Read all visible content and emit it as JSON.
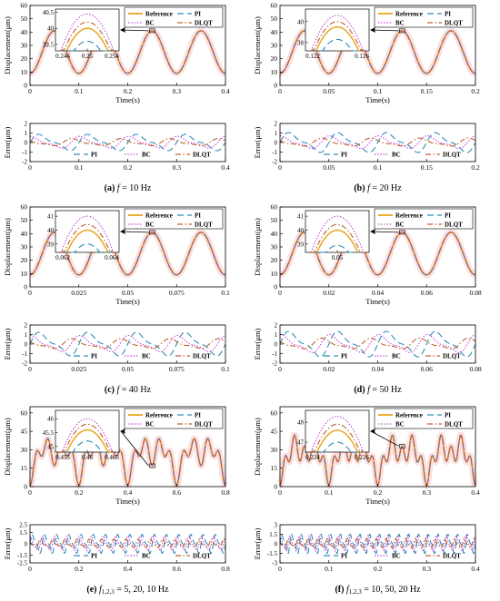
{
  "colors": {
    "reference": "#E8A820",
    "pi": "#2E8DB8",
    "bc": "#C040D8",
    "dlqt": "#C06030",
    "band": "#F4C8C8",
    "axis": "#000000"
  },
  "legend_labels": {
    "reference": "Reference",
    "pi": "PI",
    "bc": "BC",
    "dlqt": "DLQT"
  },
  "series_styles": {
    "reference": "solid",
    "pi": "long-dash",
    "bc": "dotted",
    "dlqt": "dash-dot"
  },
  "legend_order_top": [
    "reference",
    "pi",
    "bc",
    "dlqt"
  ],
  "legend_order_bottom": [
    "pi",
    "bc",
    "dlqt"
  ],
  "chart_data": [
    {
      "id": "a",
      "type": "line",
      "caption_prefix": "(a) ",
      "caption_var": "f",
      "caption_sub": "",
      "caption_rest": " = 10 Hz",
      "top": {
        "ylabel": "Displacement(μm)",
        "xlabel": "Time(s)",
        "xlim": [
          0,
          0.4
        ],
        "ylim": [
          0,
          60
        ],
        "xticks": [
          0,
          0.1,
          0.2,
          0.3,
          0.4
        ],
        "xtick_labels": [
          "0",
          "0.1",
          "0.2",
          "0.3",
          "0.4"
        ],
        "yticks": [
          0,
          10,
          20,
          30,
          40,
          50,
          60
        ],
        "ytick_labels": [
          "0",
          "10",
          "20",
          "30",
          "40",
          "50",
          "60"
        ],
        "signal": {
          "offset": 25,
          "components": [
            {
              "amp": 16,
              "freq": 10
            }
          ]
        },
        "inset": {
          "yticks": [
            39.5,
            40,
            40.5
          ],
          "ytick_labels": [
            "39.5",
            "40",
            "40.5"
          ],
          "xtick_labels": [
            "0.246",
            "0.25",
            "0.254"
          ],
          "ylim": [
            39.3,
            40.6
          ],
          "peak_values": {
            "reference": 40.0,
            "pi": 39.6,
            "bc": 40.45,
            "dlqt": 40.2
          }
        }
      },
      "bottom": {
        "ylabel": "Error(μm)",
        "xlim": [
          0,
          0.4
        ],
        "ylim": [
          -2,
          2
        ],
        "xticks": [
          0,
          0.1,
          0.2,
          0.3,
          0.4
        ],
        "xtick_labels": [
          "0",
          "0.1",
          "0.2",
          "0.3",
          "0.4"
        ],
        "yticks": [
          -2,
          -1,
          0,
          1,
          2
        ],
        "ytick_labels": [
          "-2",
          "-1",
          "0",
          "1",
          "2"
        ],
        "amplitudes": {
          "pi": 0.9,
          "bc": 0.65,
          "dlqt": 0.4
        },
        "error_freq": 10
      }
    },
    {
      "id": "b",
      "type": "line",
      "caption_prefix": "(b) ",
      "caption_var": "f",
      "caption_sub": "",
      "caption_rest": " = 20 Hz",
      "top": {
        "ylabel": "Displacement(μm)",
        "xlabel": "Time(s)",
        "xlim": [
          0,
          0.2
        ],
        "ylim": [
          0,
          60
        ],
        "xticks": [
          0,
          0.05,
          0.1,
          0.15,
          0.2
        ],
        "xtick_labels": [
          "0",
          "0.05",
          "0.1",
          "0.15",
          "0.2"
        ],
        "yticks": [
          0,
          10,
          20,
          30,
          40,
          50,
          60
        ],
        "ytick_labels": [
          "0",
          "10",
          "20",
          "30",
          "40",
          "50",
          "60"
        ],
        "signal": {
          "offset": 25,
          "components": [
            {
              "amp": 16,
              "freq": 20
            }
          ]
        },
        "inset": {
          "yticks": [
            38,
            40
          ],
          "ytick_labels": [
            "38",
            "40"
          ],
          "xtick_labels": [
            "0.122",
            "0.126"
          ],
          "ylim": [
            37.2,
            41.2
          ],
          "peak_values": {
            "reference": 39.5,
            "pi": 38.3,
            "bc": 40.6,
            "dlqt": 40.0
          }
        }
      },
      "bottom": {
        "ylabel": "Error(μm)",
        "xlim": [
          0,
          0.2
        ],
        "ylim": [
          -2,
          2
        ],
        "xticks": [
          0,
          0.05,
          0.1,
          0.15,
          0.2
        ],
        "xtick_labels": [
          "0",
          "0.05",
          "0.1",
          "0.15",
          "0.2"
        ],
        "yticks": [
          -2,
          -1,
          0,
          1,
          2
        ],
        "ytick_labels": [
          "-2",
          "-1",
          "0",
          "1",
          "2"
        ],
        "amplitudes": {
          "pi": 1.1,
          "bc": 0.7,
          "dlqt": 0.45
        },
        "error_freq": 20
      }
    },
    {
      "id": "c",
      "type": "line",
      "caption_prefix": "(c) ",
      "caption_var": "f",
      "caption_sub": "",
      "caption_rest": " = 40 Hz",
      "top": {
        "ylabel": "Displacement(μm)",
        "xlabel": "Time(s)",
        "xlim": [
          0,
          0.1
        ],
        "ylim": [
          0,
          60
        ],
        "xticks": [
          0,
          0.025,
          0.05,
          0.075,
          0.1
        ],
        "xtick_labels": [
          "0",
          "0.025",
          "0.05",
          "0.075",
          "0.1"
        ],
        "yticks": [
          0,
          10,
          20,
          30,
          40,
          50,
          60
        ],
        "ytick_labels": [
          "0",
          "10",
          "20",
          "30",
          "40",
          "50",
          "60"
        ],
        "signal": {
          "offset": 25,
          "components": [
            {
              "amp": 16,
              "freq": 40
            }
          ]
        },
        "inset": {
          "yticks": [
            39,
            40,
            41
          ],
          "ytick_labels": [
            "39",
            "40",
            "41"
          ],
          "xtick_labels": [
            "0.062",
            "0.064"
          ],
          "ylim": [
            38.4,
            41.4
          ],
          "peak_values": {
            "reference": 40.0,
            "pi": 39.0,
            "bc": 41.0,
            "dlqt": 40.4
          }
        }
      },
      "bottom": {
        "ylabel": "Error(μm)",
        "xlim": [
          0,
          0.1
        ],
        "ylim": [
          -2,
          2
        ],
        "xticks": [
          0,
          0.025,
          0.05,
          0.075,
          0.1
        ],
        "xtick_labels": [
          "0",
          "0.025",
          "0.05",
          "0.075",
          "0.1"
        ],
        "yticks": [
          -2,
          -1,
          0,
          1,
          2
        ],
        "ytick_labels": [
          "-2",
          "-1",
          "0",
          "1",
          "2"
        ],
        "amplitudes": {
          "pi": 1.3,
          "bc": 0.9,
          "dlqt": 0.55
        },
        "error_freq": 40
      }
    },
    {
      "id": "d",
      "type": "line",
      "caption_prefix": "(d) ",
      "caption_var": "f",
      "caption_sub": "",
      "caption_rest": " = 50 Hz",
      "top": {
        "ylabel": "Displacement(μm)",
        "xlabel": "Time(s)",
        "xlim": [
          0,
          0.08
        ],
        "ylim": [
          0,
          60
        ],
        "xticks": [
          0,
          0.02,
          0.04,
          0.06,
          0.08
        ],
        "xtick_labels": [
          "0",
          "0.02",
          "0.04",
          "0.06",
          "0.08"
        ],
        "yticks": [
          0,
          10,
          20,
          30,
          40,
          50,
          60
        ],
        "ytick_labels": [
          "0",
          "10",
          "20",
          "30",
          "40",
          "50",
          "60"
        ],
        "signal": {
          "offset": 25,
          "components": [
            {
              "amp": 16,
              "freq": 50
            }
          ]
        },
        "inset": {
          "yticks": [
            39,
            40,
            41
          ],
          "ytick_labels": [
            "39",
            "40",
            "41"
          ],
          "xtick_labels": [
            "0.05"
          ],
          "ylim": [
            38.4,
            41.4
          ],
          "peak_values": {
            "reference": 40.0,
            "pi": 38.9,
            "bc": 41.0,
            "dlqt": 40.4
          }
        }
      },
      "bottom": {
        "ylabel": "Error(μm)",
        "xlim": [
          0,
          0.08
        ],
        "ylim": [
          -2,
          2
        ],
        "xticks": [
          0,
          0.02,
          0.04,
          0.06,
          0.08
        ],
        "xtick_labels": [
          "0",
          "0.02",
          "0.04",
          "0.06",
          "0.08"
        ],
        "yticks": [
          -2,
          -1,
          0,
          1,
          2
        ],
        "ytick_labels": [
          "-2",
          "-1",
          "0",
          "1",
          "2"
        ],
        "amplitudes": {
          "pi": 1.4,
          "bc": 1.0,
          "dlqt": 0.6
        },
        "error_freq": 50
      }
    },
    {
      "id": "e",
      "type": "line",
      "caption_prefix": "(e) ",
      "caption_var": "f",
      "caption_sub": "1,2,3",
      "caption_rest": " = 5, 20, 10 Hz",
      "top": {
        "ylabel": "Displacement(μm)",
        "xlabel": "Time(s)",
        "xlim": [
          0,
          0.8
        ],
        "ylim": [
          0,
          65
        ],
        "xticks": [
          0,
          0.2,
          0.4,
          0.6,
          0.8
        ],
        "xtick_labels": [
          "0",
          "0.2",
          "0.4",
          "0.6",
          "0.8"
        ],
        "yticks": [
          0,
          15,
          30,
          45,
          60
        ],
        "ytick_labels": [
          "0",
          "15",
          "30",
          "45",
          "60"
        ],
        "signal": {
          "offset": 25,
          "components": [
            {
              "amp": 8,
              "freq": 5
            },
            {
              "amp": 8,
              "freq": 20
            },
            {
              "amp": 8,
              "freq": 10
            }
          ]
        },
        "inset": {
          "yticks": [
            45,
            45.5,
            46
          ],
          "ytick_labels": [
            "45",
            "45.5",
            "46"
          ],
          "xtick_labels": [
            "0.455",
            "0.46",
            "0.465"
          ],
          "ylim": [
            44.8,
            46.3
          ],
          "peak_values": {
            "reference": 45.6,
            "pi": 45.2,
            "bc": 46.0,
            "dlqt": 45.8
          }
        }
      },
      "bottom": {
        "ylabel": "Error(μm)",
        "xlim": [
          0,
          0.8
        ],
        "ylim": [
          -2.5,
          2.5
        ],
        "xticks": [
          0,
          0.2,
          0.4,
          0.6,
          0.8
        ],
        "xtick_labels": [
          "0",
          "0.2",
          "0.4",
          "0.6",
          "0.8"
        ],
        "yticks": [
          -1.5,
          0,
          1.5
        ],
        "ytick_labels": [
          "-1.5",
          "0",
          "1.5"
        ],
        "extra_yticks": [
          2.5,
          -2.5
        ],
        "extra_ytick_labels": [
          "2.5",
          "-2.5"
        ],
        "amplitudes": {
          "pi": 1.3,
          "bc": 1.0,
          "dlqt": 0.6
        },
        "error_freq": 20
      }
    },
    {
      "id": "f",
      "type": "line",
      "caption_prefix": "(f) ",
      "caption_var": "f",
      "caption_sub": "1,2,3",
      "caption_rest": " = 10, 50, 20 Hz",
      "top": {
        "ylabel": "Displacement(μm)",
        "xlabel": "Time(s)",
        "xlim": [
          0,
          0.4
        ],
        "ylim": [
          0,
          65
        ],
        "xticks": [
          0,
          0.1,
          0.2,
          0.3,
          0.4
        ],
        "xtick_labels": [
          "0",
          "0.1",
          "0.2",
          "0.3",
          "0.4"
        ],
        "yticks": [
          0,
          15,
          30,
          45,
          60
        ],
        "ytick_labels": [
          "0",
          "15",
          "30",
          "45",
          "60"
        ],
        "signal": {
          "offset": 25,
          "components": [
            {
              "amp": 8,
              "freq": 10
            },
            {
              "amp": 8,
              "freq": 50
            },
            {
              "amp": 8,
              "freq": 20
            }
          ]
        },
        "inset": {
          "yticks": [
            47,
            48
          ],
          "ytick_labels": [
            "47",
            "48"
          ],
          "xtick_labels": [
            "0.224",
            "0.226"
          ],
          "ylim": [
            46.5,
            48.6
          ],
          "peak_values": {
            "reference": 47.6,
            "pi": 47.0,
            "bc": 48.3,
            "dlqt": 47.9
          }
        }
      },
      "bottom": {
        "ylabel": "Error(μm)",
        "xlim": [
          0,
          0.4
        ],
        "ylim": [
          -3,
          3
        ],
        "xticks": [
          0,
          0.1,
          0.2,
          0.3,
          0.4
        ],
        "xtick_labels": [
          "0",
          "0.1",
          "0.2",
          "0.3",
          "0.4"
        ],
        "yticks": [
          -3,
          -1.5,
          0,
          1.5,
          3
        ],
        "ytick_labels": [
          "-3",
          "-1.5",
          "0",
          "1.5",
          "3"
        ],
        "amplitudes": {
          "pi": 1.6,
          "bc": 1.3,
          "dlqt": 0.8
        },
        "error_freq": 50
      }
    }
  ]
}
